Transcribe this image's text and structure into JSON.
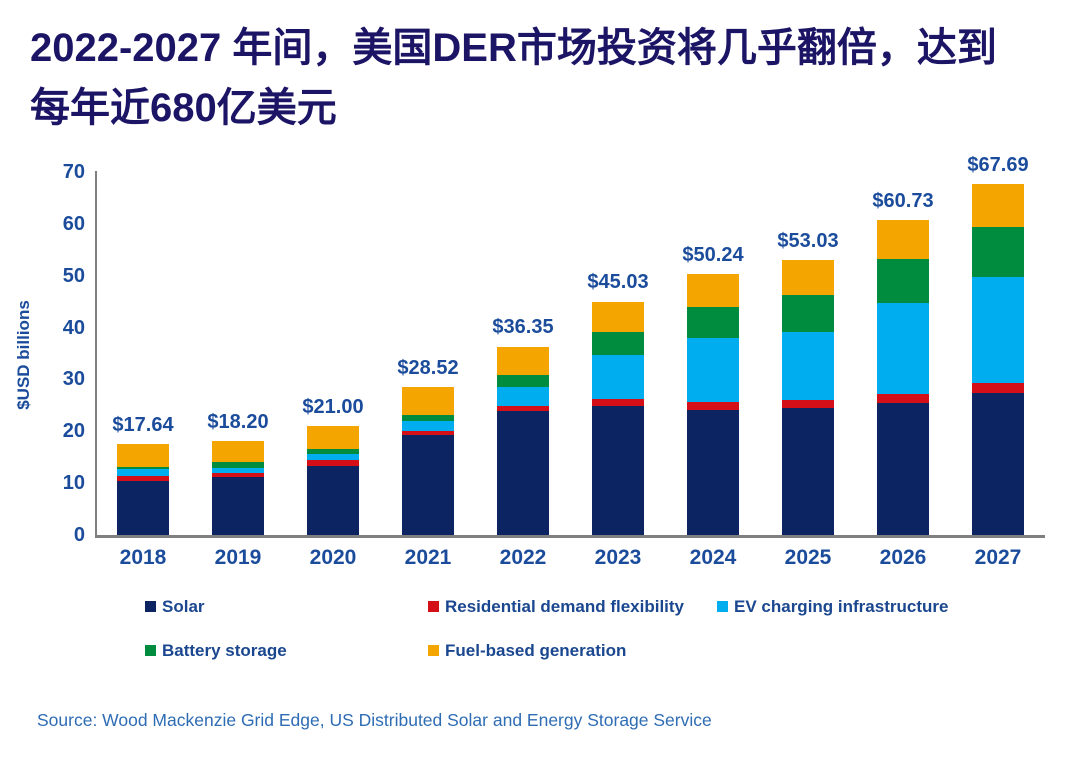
{
  "title": {
    "line1": "2022-2027 年间，美国DER市场投资将几乎翻倍，达到",
    "line2": "每年近680亿美元"
  },
  "chart_data": {
    "type": "bar",
    "stacked": true,
    "categories": [
      "2018",
      "2019",
      "2020",
      "2021",
      "2022",
      "2023",
      "2024",
      "2025",
      "2026",
      "2027"
    ],
    "series": [
      {
        "name": "Solar",
        "color": "#0d2462",
        "values": [
          10.5,
          11.2,
          13.4,
          19.2,
          23.9,
          24.9,
          24.1,
          24.5,
          25.5,
          27.3
        ]
      },
      {
        "name": "Residential demand flexibility",
        "color": "#d50f18",
        "values": [
          0.9,
          0.8,
          1.1,
          0.9,
          1.0,
          1.3,
          1.6,
          1.6,
          1.7,
          2.1
        ]
      },
      {
        "name": "EV charging infrastructure",
        "color": "#00aeef",
        "values": [
          1.3,
          1.0,
          1.1,
          1.9,
          3.7,
          8.5,
          12.3,
          13.1,
          17.6,
          20.3
        ]
      },
      {
        "name": "Battery storage",
        "color": "#008c3f",
        "values": [
          0.45,
          1.0,
          1.0,
          1.2,
          2.2,
          4.5,
          5.9,
          7.1,
          8.4,
          9.7
        ]
      },
      {
        "name": "Fuel-based generation",
        "color": "#f5a500",
        "values": [
          4.49,
          4.2,
          4.4,
          5.32,
          5.55,
          5.83,
          6.34,
          6.73,
          7.53,
          8.29
        ]
      }
    ],
    "totals": [
      17.64,
      18.2,
      21.0,
      28.52,
      36.35,
      45.03,
      50.24,
      53.03,
      60.73,
      67.69
    ],
    "total_labels": [
      "$17.64",
      "$18.20",
      "$21.00",
      "$28.52",
      "$36.35",
      "$45.03",
      "$50.24",
      "$53.03",
      "$60.73",
      "$67.69"
    ],
    "xlabel": "",
    "ylabel": "$USD billions",
    "ylim": [
      0,
      70
    ],
    "yticks": [
      0,
      10,
      20,
      30,
      40,
      50,
      60,
      70
    ],
    "grid": false,
    "legend_position": "bottom"
  },
  "legend": {
    "items": [
      {
        "label": "Solar",
        "color": "#0d2462"
      },
      {
        "label": "Residential demand flexibility",
        "color": "#d50f18"
      },
      {
        "label": "EV charging infrastructure",
        "color": "#00aeef"
      },
      {
        "label": "Battery storage",
        "color": "#008c3f"
      },
      {
        "label": "Fuel-based generation",
        "color": "#f5a500"
      }
    ]
  },
  "source": {
    "text": "Source: Wood Mackenzie Grid Edge, US Distributed Solar and Energy Storage Service"
  },
  "colors": {
    "title_text": "#1c1566",
    "axis_label_text": "#1b4c9c",
    "legend_text": "#1a478f",
    "source_text": "#2e6cb4",
    "axis_line": "#7f7f7f"
  }
}
